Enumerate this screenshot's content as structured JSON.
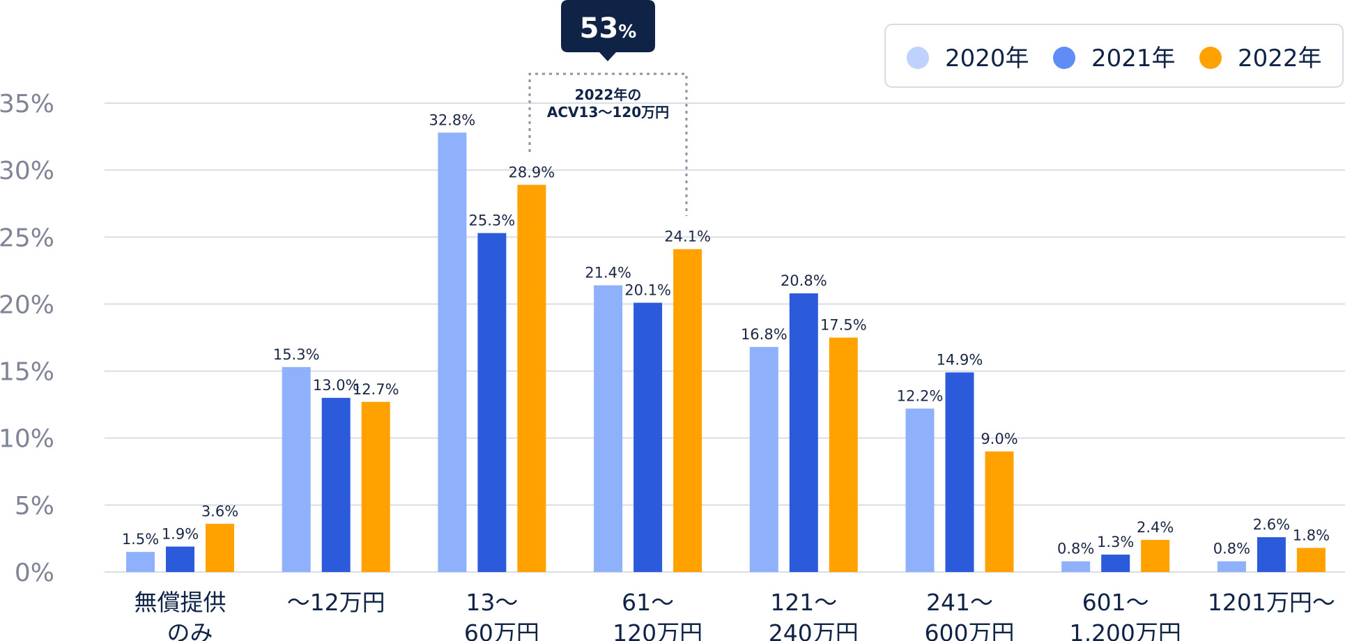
{
  "chart_data": {
    "type": "bar",
    "categories": [
      [
        "無償提供",
        "のみ"
      ],
      [
        "〜12万円"
      ],
      [
        "13〜",
        "60万円"
      ],
      [
        "61〜",
        "120万円"
      ],
      [
        "121〜",
        "240万円"
      ],
      [
        "241〜",
        "600万円"
      ],
      [
        "601〜",
        "1,200万円"
      ],
      [
        "1201万円〜"
      ]
    ],
    "series": [
      {
        "name": "2020年",
        "color": "#8fb0fb",
        "values": [
          1.5,
          15.3,
          32.8,
          21.4,
          16.8,
          12.2,
          0.8,
          0.8
        ],
        "labels": [
          "1.5%",
          "15.3%",
          "32.8%",
          "21.4%",
          "16.8%",
          "12.2%",
          "0.8%",
          "0.8%"
        ]
      },
      {
        "name": "2021年",
        "color": "#2b5bdb",
        "values": [
          1.9,
          13.0,
          25.3,
          20.1,
          20.8,
          14.9,
          1.3,
          2.6
        ],
        "labels": [
          "1.9%",
          "13.0%",
          "25.3%",
          "20.1%",
          "20.8%",
          "14.9%",
          "1.3%",
          "2.6%"
        ]
      },
      {
        "name": "2022年",
        "color": "#ffa200",
        "values": [
          3.6,
          12.7,
          28.9,
          24.1,
          17.5,
          9.0,
          2.4,
          1.8
        ],
        "labels": [
          "3.6%",
          "12.7%",
          "28.9%",
          "24.1%",
          "17.5%",
          "9.0%",
          "2.4%",
          "1.8%"
        ]
      }
    ],
    "y_ticks": [
      0,
      5,
      10,
      15,
      20,
      25,
      30,
      35
    ],
    "y_tick_labels": [
      "0%",
      "5%",
      "10%",
      "15%",
      "20%",
      "25%",
      "30%",
      "35%"
    ],
    "ylim": [
      0,
      35
    ],
    "grid": true,
    "legend_position": "top-right",
    "legend_dot_colors": [
      "#bfd1fd",
      "#5f8cf5",
      "#ffa200"
    ],
    "annotation": {
      "lines": [
        "2022年の",
        "ACV13〜120万円"
      ],
      "callout_value": "53",
      "callout_unit": "%",
      "categories_spanned": [
        "13〜 60万円",
        "61〜 120万円"
      ]
    },
    "colors": {
      "grid": "#dadde5",
      "axis_text": "#7f8496",
      "dark": "#0f2346",
      "dotted": "#8e92a2"
    }
  }
}
